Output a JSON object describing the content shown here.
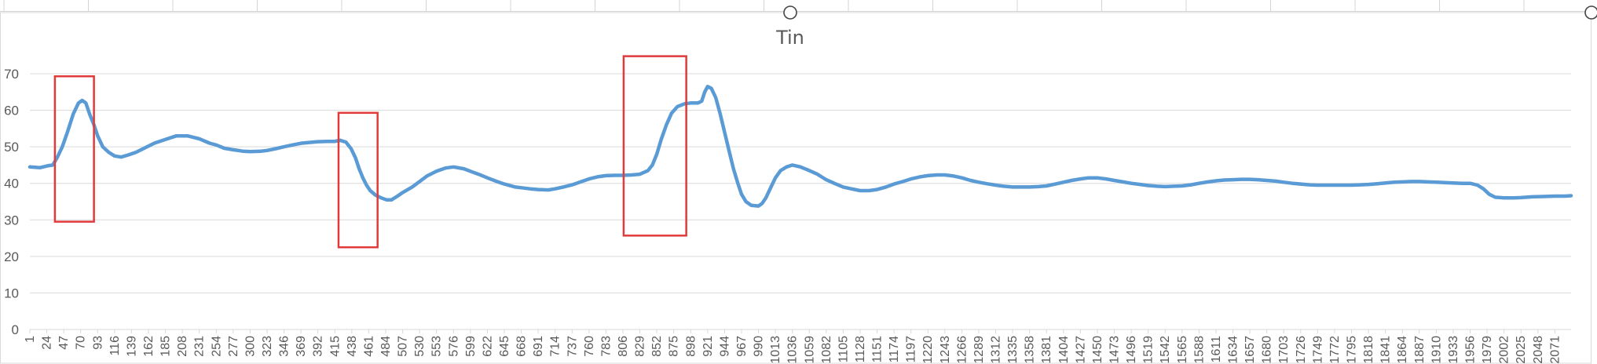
{
  "chart_data": {
    "type": "line",
    "title": "Tin",
    "xlabel": "",
    "ylabel": "",
    "ylim": [
      0,
      70
    ],
    "yticks": [
      0,
      10,
      20,
      30,
      40,
      50,
      60,
      70
    ],
    "xlim": [
      1,
      2093
    ],
    "xticks": [
      1,
      24,
      47,
      70,
      93,
      116,
      139,
      162,
      185,
      208,
      231,
      254,
      277,
      300,
      323,
      346,
      369,
      392,
      415,
      438,
      461,
      484,
      507,
      530,
      553,
      576,
      599,
      622,
      645,
      668,
      691,
      714,
      737,
      760,
      783,
      806,
      829,
      852,
      875,
      898,
      921,
      944,
      967,
      990,
      1013,
      1036,
      1059,
      1082,
      1105,
      1128,
      1151,
      1174,
      1197,
      1220,
      1243,
      1266,
      1289,
      1312,
      1335,
      1358,
      1381,
      1404,
      1427,
      1450,
      1473,
      1496,
      1519,
      1542,
      1565,
      1588,
      1611,
      1634,
      1657,
      1680,
      1703,
      1726,
      1749,
      1772,
      1795,
      1818,
      1841,
      1864,
      1887,
      1910,
      1933,
      1956,
      1979,
      2002,
      2025,
      2048,
      2071
    ],
    "grid": true,
    "legend": "none",
    "series": [
      {
        "color": "#5b9bd5",
        "points": [
          [
            1,
            44.5
          ],
          [
            15,
            44.3
          ],
          [
            25,
            44.8
          ],
          [
            32,
            45.0
          ],
          [
            38,
            47
          ],
          [
            45,
            50
          ],
          [
            52,
            54
          ],
          [
            60,
            59
          ],
          [
            67,
            62
          ],
          [
            72,
            62.7
          ],
          [
            77,
            62
          ],
          [
            82,
            59
          ],
          [
            88,
            56
          ],
          [
            93,
            53
          ],
          [
            100,
            50
          ],
          [
            108,
            48.5
          ],
          [
            116,
            47.5
          ],
          [
            125,
            47.2
          ],
          [
            135,
            47.8
          ],
          [
            145,
            48.5
          ],
          [
            155,
            49.5
          ],
          [
            162,
            50.2
          ],
          [
            170,
            51
          ],
          [
            185,
            52
          ],
          [
            200,
            53
          ],
          [
            215,
            53
          ],
          [
            231,
            52.2
          ],
          [
            245,
            51
          ],
          [
            254,
            50.5
          ],
          [
            265,
            49.6
          ],
          [
            277,
            49.2
          ],
          [
            290,
            48.8
          ],
          [
            300,
            48.7
          ],
          [
            315,
            48.8
          ],
          [
            323,
            49
          ],
          [
            335,
            49.5
          ],
          [
            346,
            50
          ],
          [
            360,
            50.6
          ],
          [
            370,
            51
          ],
          [
            380,
            51.2
          ],
          [
            392,
            51.4
          ],
          [
            405,
            51.5
          ],
          [
            415,
            51.5
          ],
          [
            422,
            51.8
          ],
          [
            430,
            51.3
          ],
          [
            437,
            49.5
          ],
          [
            443,
            47
          ],
          [
            448,
            44
          ],
          [
            453,
            41.5
          ],
          [
            458,
            39.5
          ],
          [
            463,
            38
          ],
          [
            470,
            36.8
          ],
          [
            478,
            36
          ],
          [
            485,
            35.5
          ],
          [
            492,
            35.5
          ],
          [
            500,
            36.5
          ],
          [
            507,
            37.5
          ],
          [
            520,
            39
          ],
          [
            530,
            40.5
          ],
          [
            540,
            42
          ],
          [
            553,
            43.3
          ],
          [
            565,
            44.2
          ],
          [
            576,
            44.5
          ],
          [
            590,
            44
          ],
          [
            599,
            43.3
          ],
          [
            610,
            42.5
          ],
          [
            622,
            41.5
          ],
          [
            635,
            40.5
          ],
          [
            645,
            39.8
          ],
          [
            660,
            39
          ],
          [
            668,
            38.8
          ],
          [
            680,
            38.5
          ],
          [
            691,
            38.3
          ],
          [
            705,
            38.2
          ],
          [
            714,
            38.5
          ],
          [
            725,
            39
          ],
          [
            737,
            39.6
          ],
          [
            750,
            40.5
          ],
          [
            760,
            41.2
          ],
          [
            772,
            41.8
          ],
          [
            783,
            42.1
          ],
          [
            795,
            42.2
          ],
          [
            806,
            42.2
          ],
          [
            818,
            42.3
          ],
          [
            829,
            42.5
          ],
          [
            840,
            43.5
          ],
          [
            846,
            45
          ],
          [
            852,
            48
          ],
          [
            858,
            52
          ],
          [
            865,
            56
          ],
          [
            872,
            59.2
          ],
          [
            880,
            61
          ],
          [
            890,
            61.8
          ],
          [
            898,
            62
          ],
          [
            908,
            62
          ],
          [
            913,
            62.5
          ],
          [
            917,
            65
          ],
          [
            921,
            66.5
          ],
          [
            926,
            66
          ],
          [
            932,
            63.5
          ],
          [
            938,
            59
          ],
          [
            944,
            54
          ],
          [
            950,
            49
          ],
          [
            956,
            44
          ],
          [
            962,
            40
          ],
          [
            967,
            37
          ],
          [
            973,
            35
          ],
          [
            980,
            34
          ],
          [
            990,
            33.8
          ],
          [
            995,
            34.5
          ],
          [
            1000,
            36
          ],
          [
            1007,
            39
          ],
          [
            1013,
            41.5
          ],
          [
            1020,
            43.5
          ],
          [
            1028,
            44.5
          ],
          [
            1036,
            45
          ],
          [
            1047,
            44.5
          ],
          [
            1059,
            43.5
          ],
          [
            1070,
            42.5
          ],
          [
            1082,
            41
          ],
          [
            1093,
            40
          ],
          [
            1105,
            39
          ],
          [
            1116,
            38.5
          ],
          [
            1128,
            38
          ],
          [
            1140,
            38
          ],
          [
            1151,
            38.3
          ],
          [
            1163,
            39
          ],
          [
            1174,
            39.8
          ],
          [
            1186,
            40.5
          ],
          [
            1197,
            41.2
          ],
          [
            1210,
            41.8
          ],
          [
            1220,
            42.1
          ],
          [
            1232,
            42.3
          ],
          [
            1243,
            42.3
          ],
          [
            1255,
            42
          ],
          [
            1266,
            41.5
          ],
          [
            1278,
            40.8
          ],
          [
            1289,
            40.3
          ],
          [
            1300,
            39.9
          ],
          [
            1312,
            39.5
          ],
          [
            1323,
            39.2
          ],
          [
            1335,
            39
          ],
          [
            1347,
            39
          ],
          [
            1358,
            39
          ],
          [
            1370,
            39.1
          ],
          [
            1381,
            39.3
          ],
          [
            1393,
            39.8
          ],
          [
            1404,
            40.3
          ],
          [
            1415,
            40.8
          ],
          [
            1427,
            41.2
          ],
          [
            1438,
            41.5
          ],
          [
            1450,
            41.5
          ],
          [
            1462,
            41.2
          ],
          [
            1473,
            40.8
          ],
          [
            1485,
            40.4
          ],
          [
            1496,
            40
          ],
          [
            1508,
            39.7
          ],
          [
            1519,
            39.4
          ],
          [
            1531,
            39.2
          ],
          [
            1542,
            39.1
          ],
          [
            1554,
            39.2
          ],
          [
            1565,
            39.3
          ],
          [
            1577,
            39.6
          ],
          [
            1588,
            40
          ],
          [
            1600,
            40.4
          ],
          [
            1611,
            40.7
          ],
          [
            1622,
            40.9
          ],
          [
            1634,
            41
          ],
          [
            1645,
            41.1
          ],
          [
            1657,
            41.1
          ],
          [
            1668,
            41
          ],
          [
            1680,
            40.8
          ],
          [
            1692,
            40.6
          ],
          [
            1703,
            40.3
          ],
          [
            1715,
            40
          ],
          [
            1726,
            39.8
          ],
          [
            1738,
            39.6
          ],
          [
            1749,
            39.5
          ],
          [
            1761,
            39.5
          ],
          [
            1772,
            39.5
          ],
          [
            1784,
            39.5
          ],
          [
            1795,
            39.5
          ],
          [
            1807,
            39.6
          ],
          [
            1818,
            39.7
          ],
          [
            1830,
            39.9
          ],
          [
            1841,
            40.1
          ],
          [
            1853,
            40.3
          ],
          [
            1864,
            40.4
          ],
          [
            1876,
            40.5
          ],
          [
            1887,
            40.5
          ],
          [
            1899,
            40.4
          ],
          [
            1910,
            40.3
          ],
          [
            1921,
            40.2
          ],
          [
            1933,
            40.1
          ],
          [
            1945,
            40
          ],
          [
            1956,
            40
          ],
          [
            1966,
            39.5
          ],
          [
            1974,
            38.5
          ],
          [
            1982,
            37
          ],
          [
            1990,
            36.2
          ],
          [
            2002,
            36
          ],
          [
            2015,
            36
          ],
          [
            2025,
            36.1
          ],
          [
            2040,
            36.3
          ],
          [
            2055,
            36.4
          ],
          [
            2071,
            36.5
          ],
          [
            2085,
            36.5
          ],
          [
            2093,
            36.6
          ]
        ]
      }
    ],
    "annotations": [
      {
        "shape": "rectangle",
        "color": "#e03a3a",
        "x_range": [
          35,
          88
        ],
        "y_range": [
          29.5,
          69.3
        ]
      },
      {
        "shape": "rectangle",
        "color": "#e03a3a",
        "x_range": [
          420,
          473
        ],
        "y_range": [
          22.5,
          59.3
        ]
      },
      {
        "shape": "rectangle",
        "color": "#e03a3a",
        "x_range": [
          807,
          892
        ],
        "y_range": [
          25.7,
          74.8
        ]
      }
    ]
  }
}
